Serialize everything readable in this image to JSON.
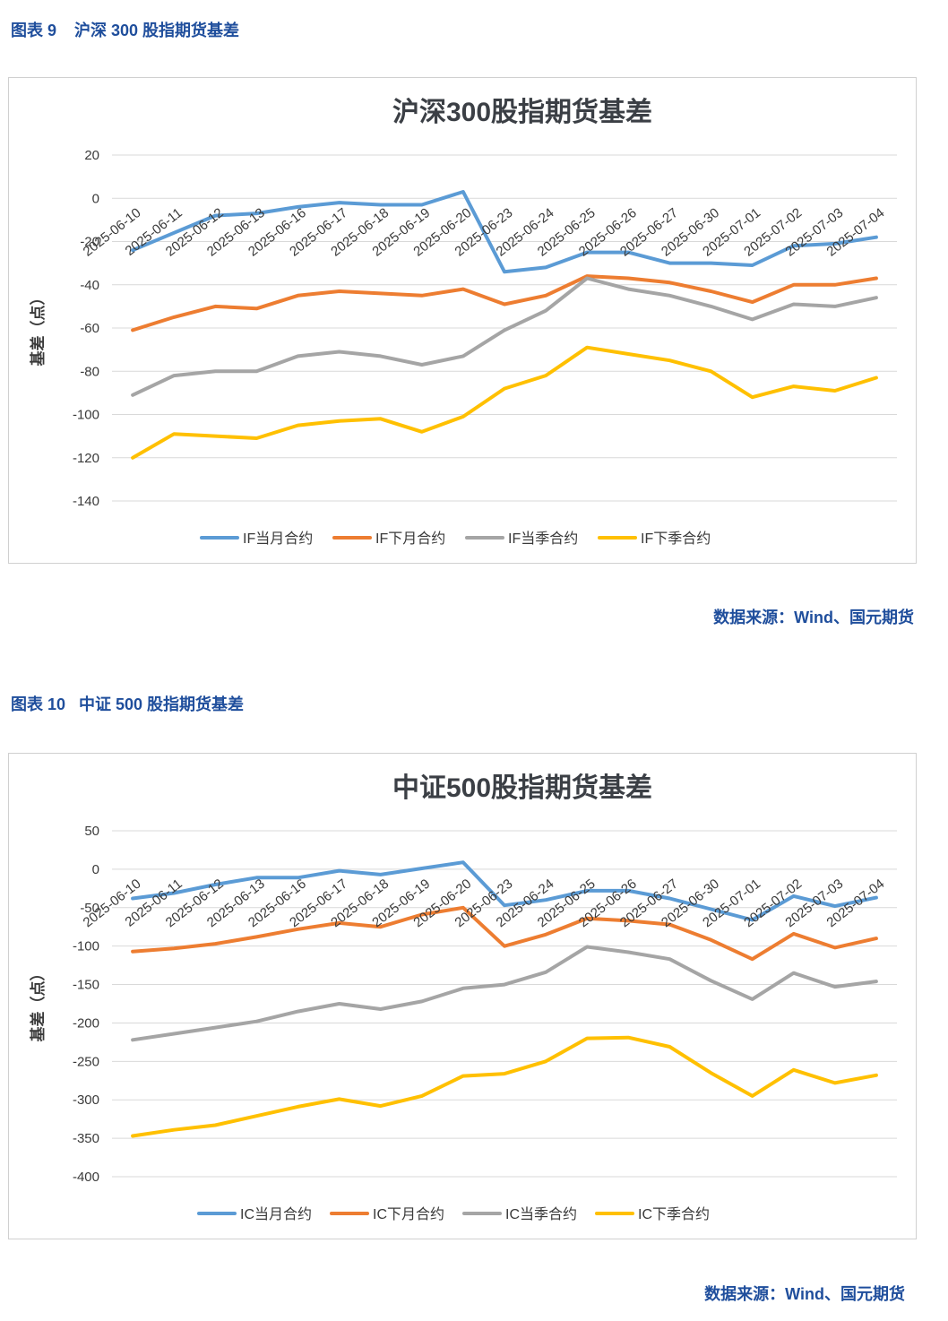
{
  "figures": [
    {
      "caption": "图表 9    沪深 300 股指期货基差",
      "source": "数据来源：Wind、国元期货"
    },
    {
      "caption": "图表 10   中证 500 股指期货基差",
      "source": "数据来源：Wind、国元期货"
    }
  ],
  "chart_data": [
    {
      "type": "line",
      "title": "沪深300股指期货基差",
      "xlabel": "",
      "ylabel": "基差（点）",
      "ylim": [
        -140,
        20
      ],
      "yticks": [
        20,
        0,
        -20,
        -40,
        -60,
        -80,
        -100,
        -120,
        -140
      ],
      "grid": "horizontal",
      "legend_position": "bottom",
      "categories": [
        "2025-06-10",
        "2025-06-11",
        "2025-06-12",
        "2025-06-13",
        "2025-06-16",
        "2025-06-17",
        "2025-06-18",
        "2025-06-19",
        "2025-06-20",
        "2025-06-23",
        "2025-06-24",
        "2025-06-25",
        "2025-06-26",
        "2025-06-27",
        "2025-06-30",
        "2025-07-01",
        "2025-07-02",
        "2025-07-03",
        "2025-07-04"
      ],
      "series": [
        {
          "name": "IF当月合约",
          "color": "#5b9bd5",
          "values": [
            -24,
            -16,
            -8,
            -7,
            -4,
            -2,
            -3,
            -3,
            3,
            -34,
            -32,
            -25,
            -25,
            -30,
            -30,
            -31,
            -22,
            -21,
            -18
          ]
        },
        {
          "name": "IF下月合约",
          "color": "#ed7d31",
          "values": [
            -61,
            -55,
            -50,
            -51,
            -45,
            -43,
            -44,
            -45,
            -42,
            -49,
            -45,
            -36,
            -37,
            -39,
            -43,
            -48,
            -40,
            -40,
            -37
          ]
        },
        {
          "name": "IF当季合约",
          "color": "#a5a5a5",
          "values": [
            -91,
            -82,
            -80,
            -80,
            -73,
            -71,
            -73,
            -77,
            -73,
            -61,
            -52,
            -37,
            -42,
            -45,
            -50,
            -56,
            -49,
            -50,
            -46
          ]
        },
        {
          "name": "IF下季合约",
          "color": "#ffc000",
          "values": [
            -120,
            -109,
            -110,
            -111,
            -105,
            -103,
            -102,
            -108,
            -101,
            -88,
            -82,
            -69,
            -72,
            -75,
            -80,
            -92,
            -87,
            -89,
            -83
          ]
        }
      ]
    },
    {
      "type": "line",
      "title": "中证500股指期货基差",
      "xlabel": "",
      "ylabel": "基差（点）",
      "ylim": [
        -400,
        50
      ],
      "yticks": [
        50,
        0,
        -50,
        -100,
        -150,
        -200,
        -250,
        -300,
        -350,
        -400
      ],
      "grid": "horizontal",
      "legend_position": "bottom",
      "categories": [
        "2025-06-10",
        "2025-06-11",
        "2025-06-12",
        "2025-06-13",
        "2025-06-16",
        "2025-06-17",
        "2025-06-18",
        "2025-06-19",
        "2025-06-20",
        "2025-06-23",
        "2025-06-24",
        "2025-06-25",
        "2025-06-26",
        "2025-06-27",
        "2025-06-30",
        "2025-07-01",
        "2025-07-02",
        "2025-07-03",
        "2025-07-04"
      ],
      "series": [
        {
          "name": "IC当月合约",
          "color": "#5b9bd5",
          "values": [
            -38,
            -31,
            -20,
            -11,
            -11,
            -2,
            -7,
            1,
            9,
            -47,
            -40,
            -28,
            -28,
            -38,
            -52,
            -66,
            -35,
            -48,
            -37
          ]
        },
        {
          "name": "IC下月合约",
          "color": "#ed7d31",
          "values": [
            -107,
            -103,
            -97,
            -88,
            -78,
            -70,
            -75,
            -59,
            -50,
            -100,
            -85,
            -64,
            -67,
            -72,
            -92,
            -117,
            -84,
            -102,
            -90
          ]
        },
        {
          "name": "IC当季合约",
          "color": "#a5a5a5",
          "values": [
            -222,
            -214,
            -206,
            -198,
            -185,
            -175,
            -182,
            -172,
            -155,
            -150,
            -134,
            -101,
            -108,
            -117,
            -145,
            -169,
            -135,
            -153,
            -146
          ]
        },
        {
          "name": "IC下季合约",
          "color": "#ffc000",
          "values": [
            -347,
            -339,
            -333,
            -321,
            -309,
            -299,
            -308,
            -295,
            -269,
            -266,
            -250,
            -220,
            -219,
            -231,
            -265,
            -295,
            -261,
            -278,
            -268
          ]
        }
      ]
    }
  ]
}
